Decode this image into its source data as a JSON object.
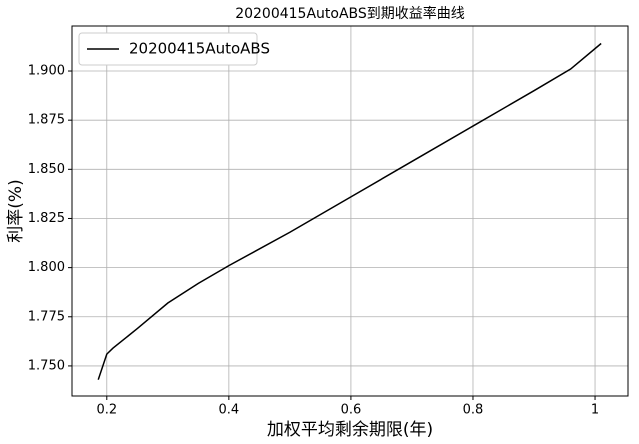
{
  "chart_data": {
    "type": "line",
    "title": "20200415AutoABS到期收益率曲线",
    "xlabel": "加权平均剩余期限(年)",
    "ylabel": "利率(%)",
    "x": [
      0.186,
      0.2,
      0.21,
      0.25,
      0.3,
      0.35,
      0.4,
      0.5,
      0.6,
      0.7,
      0.8,
      0.9,
      0.96,
      1.01
    ],
    "series": [
      {
        "name": "20200415AutoABS",
        "color": "#000000",
        "values": [
          1.743,
          1.756,
          1.759,
          1.769,
          1.782,
          1.792,
          1.801,
          1.818,
          1.836,
          1.854,
          1.872,
          1.89,
          1.901,
          1.914
        ]
      }
    ],
    "xlim": [
      0.143,
      1.054
    ],
    "ylim": [
      1.7347,
      1.9229
    ],
    "xticks": [
      0.2,
      0.4,
      0.6,
      0.8,
      1.0
    ],
    "yticks": [
      {
        "value": 1.75,
        "label": "1.750"
      },
      {
        "value": 1.775,
        "label": "1.775"
      },
      {
        "value": 1.8,
        "label": "1.800"
      },
      {
        "value": 1.825,
        "label": "1.825"
      },
      {
        "value": 1.85,
        "label": "1.850"
      },
      {
        "value": 1.875,
        "label": "1.875"
      },
      {
        "value": 1.9,
        "label": "1.900"
      }
    ],
    "grid": true,
    "legend": "upper-left"
  }
}
